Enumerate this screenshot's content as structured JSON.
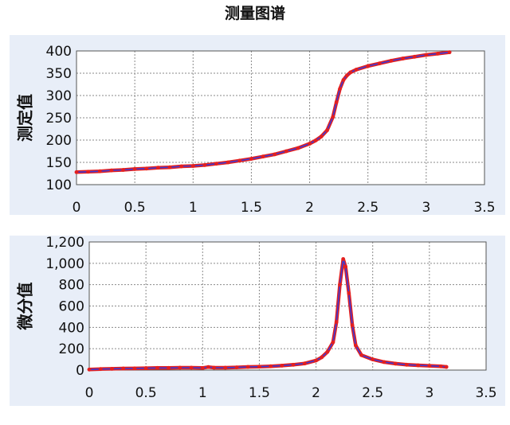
{
  "title": "测量图谱",
  "colors": {
    "panel_bg": "#e8eef8",
    "plot_bg": "#ffffff",
    "grid": "#8a8a8a",
    "line": "#3a3ad8",
    "marker": "#e32020",
    "text": "#111111"
  },
  "chart_data": [
    {
      "type": "line",
      "ylabel": "测定值",
      "xlim": [
        0,
        3.5
      ],
      "ylim": [
        100,
        400
      ],
      "xticks": [
        "0",
        "0.5",
        "1",
        "1.5",
        "2",
        "2.5",
        "3",
        "3.5"
      ],
      "yticks": [
        "100",
        "150",
        "200",
        "250",
        "300",
        "350",
        "400"
      ],
      "grid": true,
      "series": [
        {
          "x": [
            0,
            0.1,
            0.2,
            0.3,
            0.4,
            0.5,
            0.6,
            0.7,
            0.8,
            0.9,
            1.0,
            1.1,
            1.2,
            1.3,
            1.4,
            1.5,
            1.6,
            1.7,
            1.8,
            1.9,
            2.0,
            2.05,
            2.1,
            2.15,
            2.2,
            2.23,
            2.26,
            2.29,
            2.32,
            2.35,
            2.4,
            2.5,
            2.6,
            2.7,
            2.8,
            2.9,
            3.0,
            3.1,
            3.2
          ],
          "y": [
            128,
            129,
            130,
            132,
            133,
            135,
            136,
            138,
            139,
            141,
            142,
            144,
            147,
            150,
            154,
            158,
            163,
            168,
            175,
            182,
            192,
            199,
            208,
            222,
            252,
            285,
            315,
            335,
            345,
            352,
            358,
            366,
            372,
            378,
            383,
            387,
            391,
            394,
            397
          ]
        }
      ]
    },
    {
      "type": "line",
      "ylabel": "微分值",
      "xlim": [
        0,
        3.5
      ],
      "ylim": [
        0,
        1200
      ],
      "xticks": [
        "0",
        "0.5",
        "1",
        "1.5",
        "2",
        "2.5",
        "3",
        "3.5"
      ],
      "yticks": [
        "0",
        "200",
        "400",
        "600",
        "800",
        "1,000",
        "1,200"
      ],
      "grid": true,
      "series": [
        {
          "x": [
            0,
            0.1,
            0.2,
            0.3,
            0.4,
            0.5,
            0.6,
            0.7,
            0.8,
            0.9,
            1.0,
            1.05,
            1.1,
            1.2,
            1.3,
            1.4,
            1.5,
            1.6,
            1.7,
            1.8,
            1.9,
            2.0,
            2.05,
            2.1,
            2.15,
            2.18,
            2.21,
            2.24,
            2.26,
            2.29,
            2.32,
            2.35,
            2.4,
            2.5,
            2.6,
            2.7,
            2.8,
            2.9,
            3.0,
            3.1,
            3.15
          ],
          "y": [
            5,
            10,
            12,
            15,
            16,
            18,
            20,
            20,
            22,
            22,
            20,
            28,
            22,
            22,
            25,
            30,
            32,
            36,
            42,
            50,
            62,
            90,
            120,
            170,
            260,
            450,
            800,
            1040,
            970,
            720,
            420,
            230,
            140,
            100,
            75,
            60,
            50,
            45,
            40,
            35,
            30
          ]
        }
      ]
    }
  ]
}
